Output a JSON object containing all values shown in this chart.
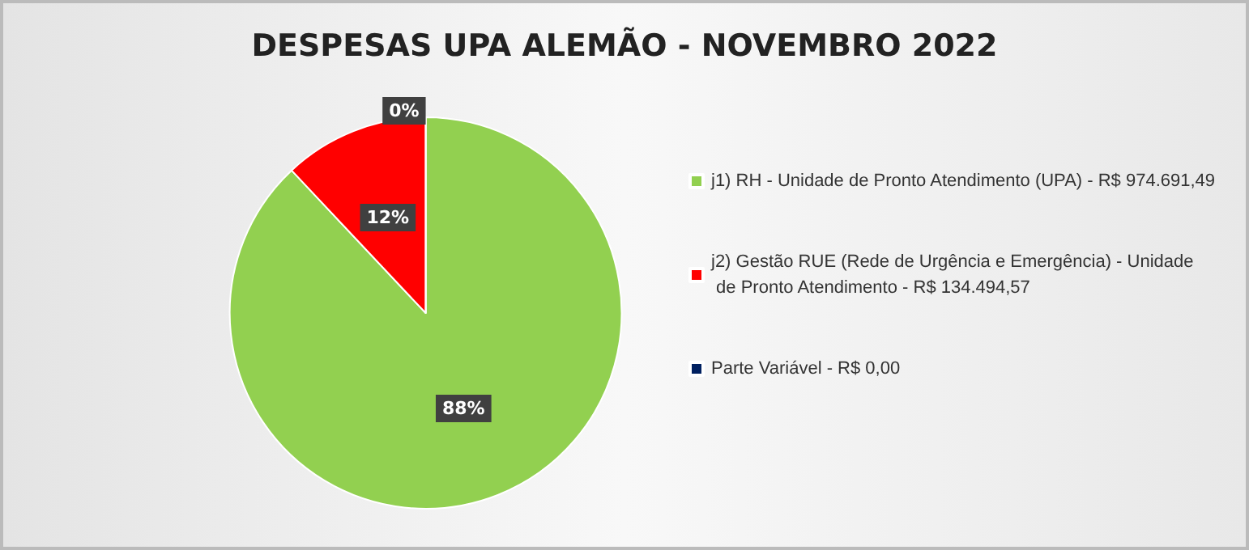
{
  "chart_data": {
    "type": "pie",
    "title": "DESPESAS UPA ALEMÃO - NOVEMBRO 2022",
    "categories": [
      "j1) RH - Unidade de Pronto Atendimento (UPA) - R$ 974.691,49",
      "j2) Gestão RUE (Rede de Urgência e Emergência) - Unidade de Pronto Atendimento - R$ 134.494,57",
      "Parte Variável - R$ 0,00"
    ],
    "values": [
      88,
      12,
      0
    ],
    "colors": [
      "#92d050",
      "#ff0000",
      "#002060"
    ],
    "value_labels": [
      "88%",
      "12%",
      "0%"
    ],
    "legend": "right"
  }
}
